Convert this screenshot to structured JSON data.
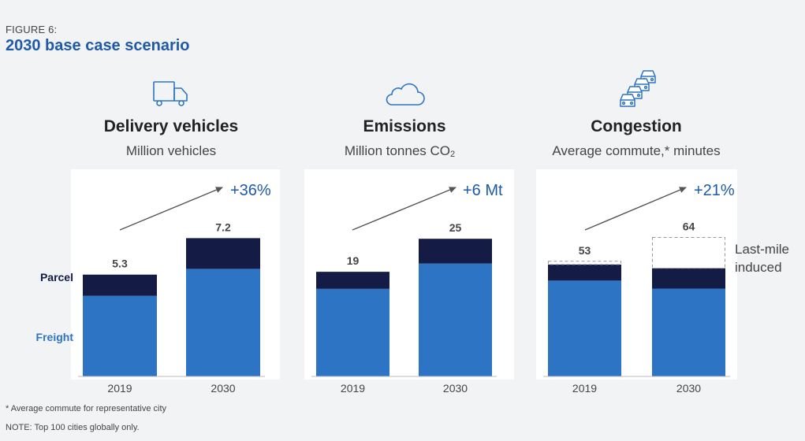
{
  "figure_label": "FIGURE 6:",
  "figure_title": "2030 base case scenario",
  "colors": {
    "freight": "#2d74c4",
    "parcel": "#141c45",
    "accent": "#1f5aa8",
    "arrow": "#555555"
  },
  "legend": {
    "parcel": "Parcel",
    "freight": "Freight",
    "induced": [
      "Last-mile",
      "induced"
    ]
  },
  "footnotes": [
    "* Average commute for representative city",
    "NOTE: Top 100 cities globally only."
  ],
  "chart_data": [
    {
      "type": "bar",
      "icon": "truck-icon",
      "title": "Delivery vehicles",
      "subtitle": "Million vehicles",
      "categories": [
        "2019",
        "2030"
      ],
      "series": [
        {
          "name": "Freight",
          "values": [
            4.2,
            5.6
          ]
        },
        {
          "name": "Parcel",
          "values": [
            1.1,
            1.6
          ]
        }
      ],
      "totals": [
        "5.3",
        "7.2"
      ],
      "change": "+36%",
      "ylim": [
        0,
        8.2
      ]
    },
    {
      "type": "bar",
      "icon": "cloud-icon",
      "title": "Emissions",
      "subtitle_main": "Million tonnes CO",
      "subtitle_sub": "2",
      "categories": [
        "2019",
        "2030"
      ],
      "series": [
        {
          "name": "Freight",
          "values": [
            15.9,
            20.5
          ]
        },
        {
          "name": "Parcel",
          "values": [
            3.1,
            4.5
          ]
        }
      ],
      "totals": [
        "19",
        "25"
      ],
      "change": "+6 Mt",
      "ylim": [
        0,
        28.6
      ]
    },
    {
      "type": "bar",
      "icon": "traffic-icon",
      "title": "Congestion",
      "subtitle": "Average commute,* minutes",
      "categories": [
        "2019",
        "2030"
      ],
      "series": [
        {
          "name": "Freight",
          "values": [
            44.1,
            40.4
          ]
        },
        {
          "name": "Parcel",
          "values": [
            7.4,
            9.4
          ]
        }
      ],
      "dashed_totals": [
        53,
        64
      ],
      "totals": [
        "53",
        "64"
      ],
      "change": "+21%",
      "ylim": [
        0,
        72.5
      ]
    }
  ]
}
